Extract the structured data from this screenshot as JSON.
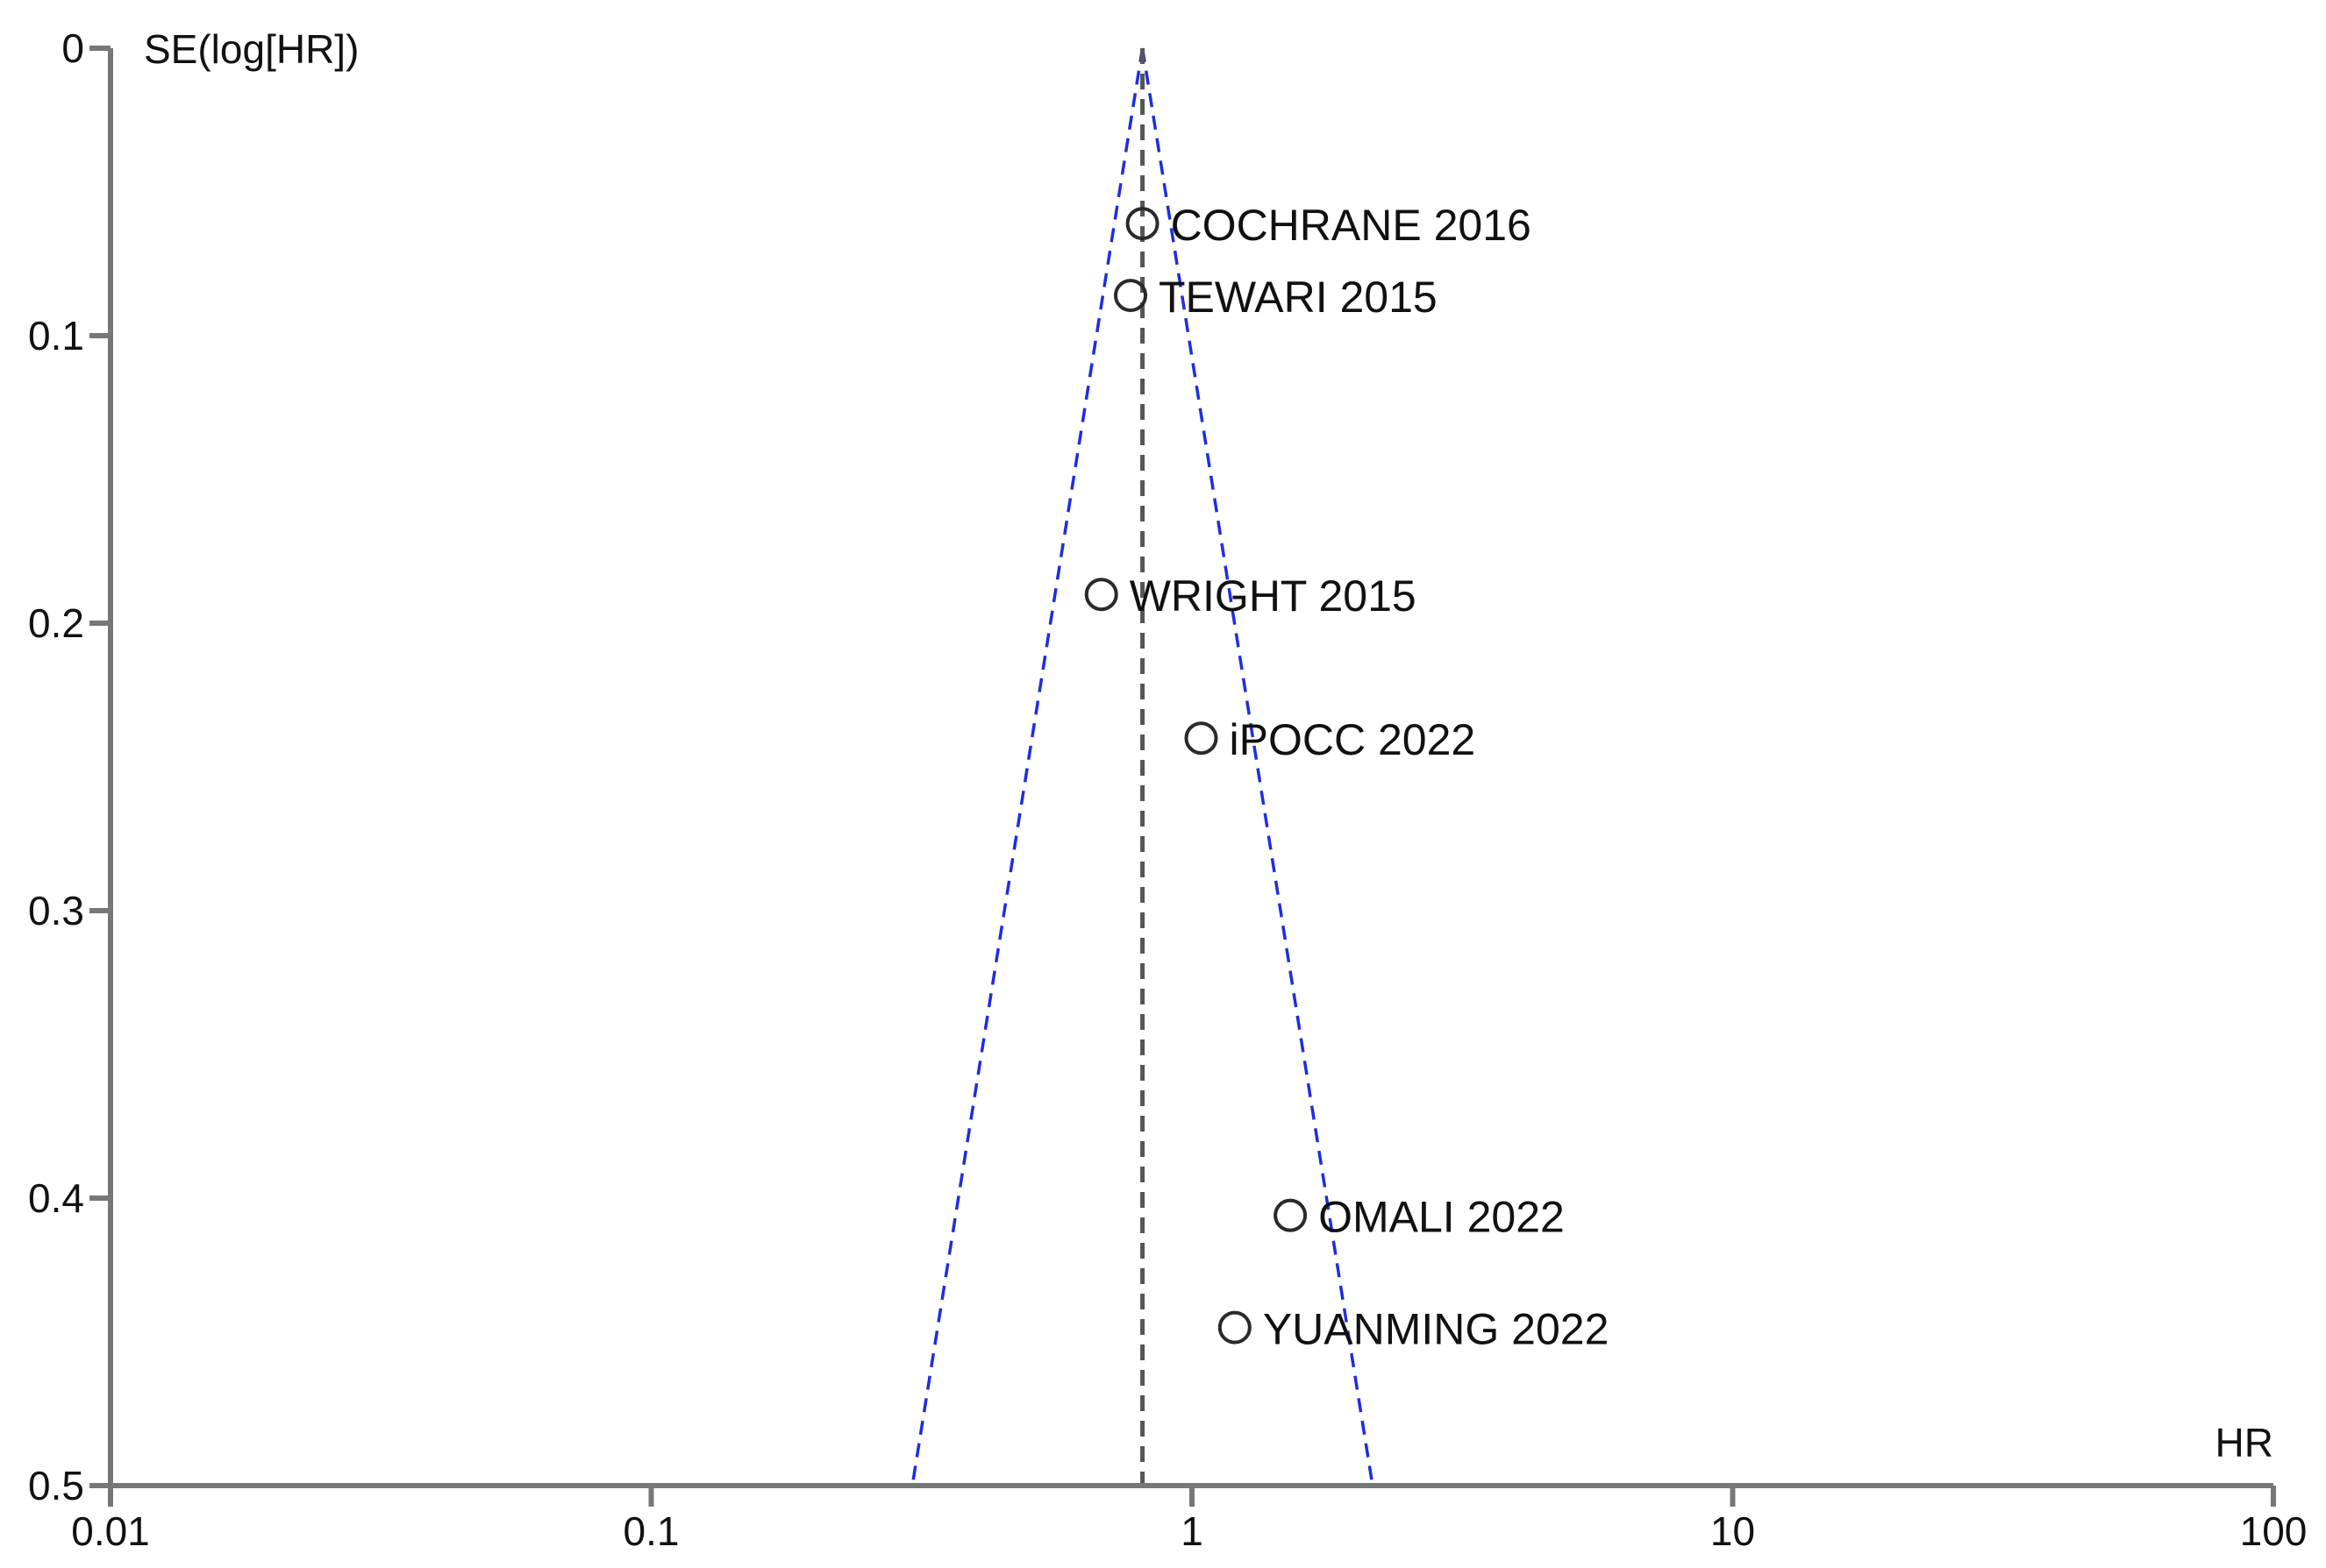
{
  "chart_data": {
    "type": "scatter",
    "title": "",
    "xlabel": "HR",
    "ylabel": "SE(log[HR])",
    "x_scale": "log",
    "xlim": [
      0.01,
      100
    ],
    "ylim": [
      0,
      0.5
    ],
    "y_inverted": true,
    "x_ticks": [
      0.01,
      0.1,
      1,
      10,
      100
    ],
    "x_tick_labels": [
      "0.01",
      "0.1",
      "1",
      "10",
      "100"
    ],
    "y_ticks": [
      0,
      0.1,
      0.2,
      0.3,
      0.4,
      0.5
    ],
    "y_tick_labels": [
      "0",
      "0.1",
      "0.2",
      "0.3",
      "0.4",
      "0.5"
    ],
    "grid": false,
    "pooled_estimate": 0.81,
    "funnel_color": "#1f2de0",
    "reference_line_color": "#555555",
    "marker_style": "open-circle",
    "points": [
      {
        "label": "COCHRANE 2016",
        "x": 0.81,
        "y": 0.061
      },
      {
        "label": "TEWARI 2015",
        "x": 0.77,
        "y": 0.086
      },
      {
        "label": "WRIGHT 2015",
        "x": 0.68,
        "y": 0.19
      },
      {
        "label": "iPOCC 2022",
        "x": 1.04,
        "y": 0.24
      },
      {
        "label": "OMALI 2022",
        "x": 1.52,
        "y": 0.406
      },
      {
        "label": "YUANMING 2022",
        "x": 1.2,
        "y": 0.445
      }
    ]
  }
}
